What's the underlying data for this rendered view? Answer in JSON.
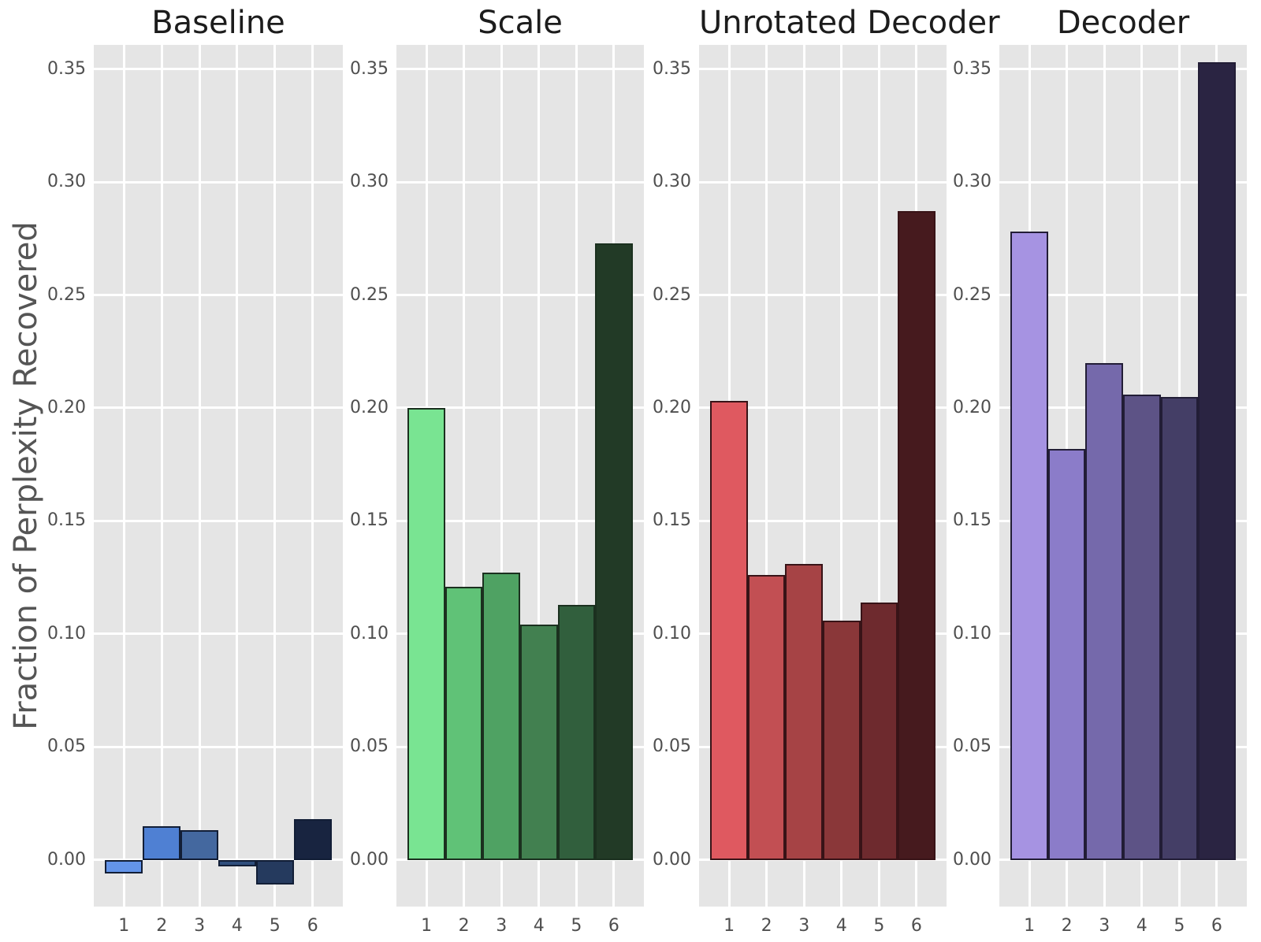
{
  "figure": {
    "background": "#ffffff",
    "plot_background": "#e5e5e5",
    "grid_color": "#ffffff",
    "tick_color": "#4f4f4f",
    "title_color": "#1c1c1c",
    "ylabel_color": "#555555"
  },
  "chart_data": {
    "type": "bar",
    "ylabel": "Fraction of Perplexity Recovered",
    "xlabel": "",
    "categories": [
      "1",
      "2",
      "3",
      "4",
      "5",
      "6"
    ],
    "yticks": [
      0.0,
      0.05,
      0.1,
      0.15,
      0.2,
      0.25,
      0.3,
      0.35
    ],
    "ytick_labels": [
      "0.00",
      "0.05",
      "0.10",
      "0.15",
      "0.20",
      "0.25",
      "0.30",
      "0.35"
    ],
    "ylim": [
      -0.0207,
      0.3607
    ],
    "grid": true,
    "legend": false,
    "panels": [
      {
        "title": "Baseline",
        "values": [
          -0.006,
          0.015,
          0.013,
          -0.003,
          -0.011,
          0.018
        ],
        "colors": [
          "#6394EA",
          "#4F80D3",
          "#44689F",
          "#2F4E7C",
          "#253A5E",
          "#182440"
        ],
        "edge_color": "#121E36"
      },
      {
        "title": "Scale",
        "values": [
          0.2,
          0.121,
          0.127,
          0.104,
          0.113,
          0.273
        ],
        "colors": [
          "#79E492",
          "#60C277",
          "#4FA263",
          "#428050",
          "#315F3D",
          "#223A26"
        ],
        "edge_color": "#1B301F"
      },
      {
        "title": "Unrotated Decoder",
        "values": [
          0.203,
          0.126,
          0.131,
          0.106,
          0.114,
          0.287
        ],
        "colors": [
          "#DF5960",
          "#C24F53",
          "#A64345",
          "#8A3739",
          "#6E2A2E",
          "#461A1E"
        ],
        "edge_color": "#381317"
      },
      {
        "title": "Decoder",
        "values": [
          0.278,
          0.182,
          0.22,
          0.206,
          0.205,
          0.353
        ],
        "colors": [
          "#A693E2",
          "#8B7CC9",
          "#7569AB",
          "#5D5386",
          "#443E66",
          "#2A2442"
        ],
        "edge_color": "#221D36"
      }
    ]
  }
}
